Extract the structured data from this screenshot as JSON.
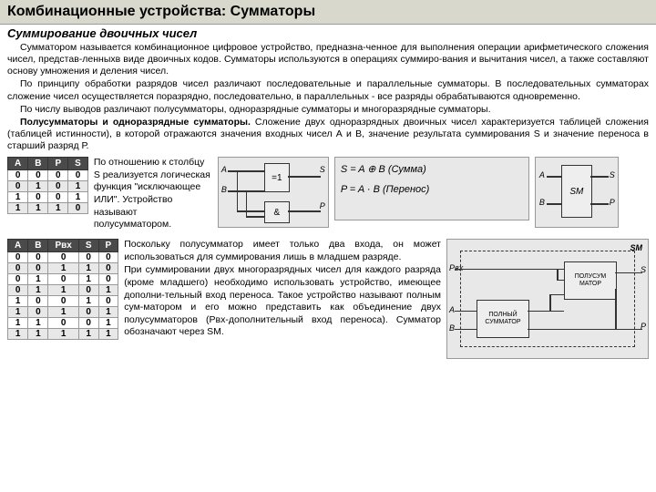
{
  "title": "Комбинационные устройства: Сумматоры",
  "subtitle": "Суммирование двоичных чисел",
  "para1": "Сумматором называется комбинационное цифровое устройство, предназна-ченное для выполнения операции арифметического сложения чисел, представ-ленныхв виде двоичных кодов. Сумматоры используются в операциях суммиро-вания и вычитания чисел, а также составляют основу умножения и деления чисел.",
  "para2": "По принципу обработки разрядов чисел различают последовательные и параллельные сумматоры. В последовательных сумматорах сложение чисел осуществляется поразрядно, последовательно, в параллельных - все разряды обрабатываются одновременно.",
  "para3": "По числу выводов различают полусумматоры, одноразрядные сумматоры и многоразрядные сумматоры.",
  "para4a": "Полусумматоры и одноразрядные сумматоры.",
  "para4b": " Сложение двух одноразрядных двоичных чисел характеризуется таблицей сложения (таблицей истинности), в которой отражаются значения входных чисел А и В, значение результата суммирования S и значение переноса в старший разряд Р.",
  "table1": {
    "headers": [
      "A",
      "B",
      "P",
      "S"
    ],
    "rows": [
      [
        "0",
        "0",
        "0",
        "0"
      ],
      [
        "0",
        "1",
        "0",
        "1"
      ],
      [
        "1",
        "0",
        "0",
        "1"
      ],
      [
        "1",
        "1",
        "1",
        "0"
      ]
    ]
  },
  "coltext1": "По отношению к столбцу S реализуется логическая функция \"исключающее ИЛИ\". Устройство называют полусумматором.",
  "formula1": "S = A ⊕ B  (Сумма)",
  "formula2": "P = A · B  (Перенос)",
  "table2": {
    "headers": [
      "A",
      "B",
      "Pвх",
      "S",
      "P"
    ],
    "rows": [
      [
        "0",
        "0",
        "0",
        "0",
        "0"
      ],
      [
        "0",
        "0",
        "1",
        "1",
        "0"
      ],
      [
        "0",
        "1",
        "0",
        "1",
        "0"
      ],
      [
        "0",
        "1",
        "1",
        "0",
        "1"
      ],
      [
        "1",
        "0",
        "0",
        "1",
        "0"
      ],
      [
        "1",
        "0",
        "1",
        "0",
        "1"
      ],
      [
        "1",
        "1",
        "0",
        "0",
        "1"
      ],
      [
        "1",
        "1",
        "1",
        "1",
        "1"
      ]
    ]
  },
  "coltext2": "Поскольку полусумматор имеет только два входа, он может использоваться для суммирования лишь в младшем разряде.",
  "coltext2b": "При суммировании двух многоразрядных чисел для каждого разряда (кроме младшего) необходимо использовать устройство, имеющее дополни-тельный вход переноса. Такое устройство называют полным сум-матором и его можно представить как объединение двух полусумматоров (Pвх-дополнительный вход переноса). Сумматор обозначают через SM.",
  "labels": {
    "A": "A",
    "B": "B",
    "S": "S",
    "P": "P",
    "SM": "SM",
    "Pvx": "Pвх",
    "half": "ПОЛУСУМ\nМАТОР",
    "full": "ПОЛНЫЙ\nСУММАТОР",
    "eq1": "=1",
    "amp": "&"
  }
}
